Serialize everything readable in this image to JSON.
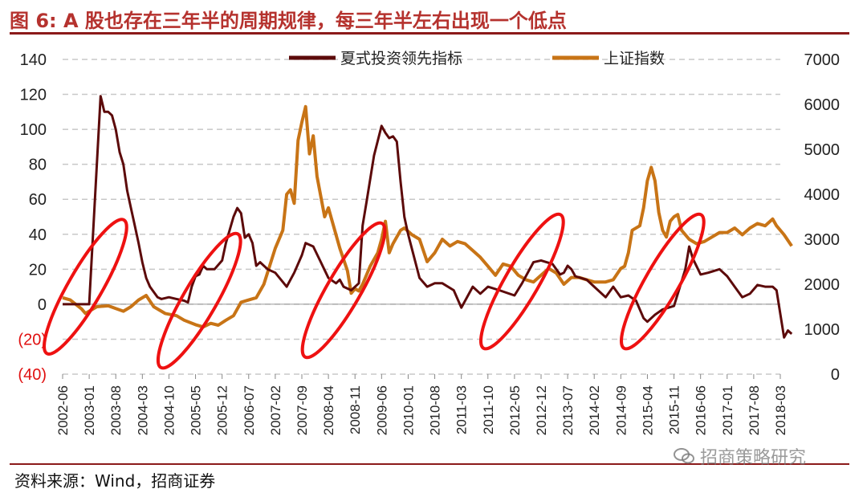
{
  "figure": {
    "title": "图 6:  A 股也存在三年半的周期规律，每三年半左右出现一个低点",
    "source": "资料来源：Wind，招商证券",
    "watermark": "招商策略研究",
    "watermark_icon": "wechat-icon"
  },
  "chart_data": {
    "type": "line",
    "colors": {
      "leading_indicator": "#5c0a0a",
      "sse_index": "#c87416",
      "highlight_ellipse": "#ee1111",
      "negative_tick": "#e01010"
    },
    "legend_position": "top",
    "grid": "horizontal-dashed",
    "y_left": {
      "range": [
        -40,
        140
      ],
      "ticks": [
        140,
        120,
        100,
        80,
        60,
        40,
        20,
        0,
        -20,
        -40
      ],
      "tick_labels": [
        "140",
        "120",
        "100",
        "80",
        "60",
        "40",
        "20",
        "0",
        "(20)",
        "(40)"
      ]
    },
    "y_right": {
      "range": [
        0,
        7000
      ],
      "ticks": [
        7000,
        6000,
        5000,
        4000,
        3000,
        2000,
        1000,
        0
      ],
      "tick_labels": [
        "7000",
        "6000",
        "5000",
        "4000",
        "3000",
        "2000",
        "1000",
        "0"
      ]
    },
    "x_ticks": [
      "2002-06",
      "2003-01",
      "2003-08",
      "2004-03",
      "2004-10",
      "2005-05",
      "2005-12",
      "2006-07",
      "2007-02",
      "2007-09",
      "2008-04",
      "2008-11",
      "2009-06",
      "2010-01",
      "2010-08",
      "2011-03",
      "2011-10",
      "2012-05",
      "2012-12",
      "2013-07",
      "2014-02",
      "2014-09",
      "2015-04",
      "2015-11",
      "2016-06",
      "2017-01",
      "2017-08",
      "2018-03"
    ],
    "series": [
      {
        "name": "夏式投资领先指标",
        "axis": "left",
        "points": [
          [
            "2002-06",
            0
          ],
          [
            "2002-10",
            0
          ],
          [
            "2002-12",
            0
          ],
          [
            "2003-01",
            0
          ],
          [
            "2003-04",
            119
          ],
          [
            "2003-05",
            110
          ],
          [
            "2003-06",
            110
          ],
          [
            "2003-07",
            108
          ],
          [
            "2003-08",
            100
          ],
          [
            "2003-09",
            87
          ],
          [
            "2003-10",
            80
          ],
          [
            "2003-11",
            65
          ],
          [
            "2003-12",
            55
          ],
          [
            "2004-01",
            45
          ],
          [
            "2004-02",
            35
          ],
          [
            "2004-03",
            24
          ],
          [
            "2004-04",
            15
          ],
          [
            "2004-05",
            10
          ],
          [
            "2004-06",
            7
          ],
          [
            "2004-07",
            4
          ],
          [
            "2004-08",
            3
          ],
          [
            "2004-10",
            4
          ],
          [
            "2004-12",
            3
          ],
          [
            "2005-02",
            2
          ],
          [
            "2005-03",
            1
          ],
          [
            "2005-04",
            10
          ],
          [
            "2005-05",
            16
          ],
          [
            "2005-06",
            17
          ],
          [
            "2005-07",
            22
          ],
          [
            "2005-08",
            20
          ],
          [
            "2005-10",
            20
          ],
          [
            "2005-12",
            25
          ],
          [
            "2006-01",
            35
          ],
          [
            "2006-03",
            50
          ],
          [
            "2006-04",
            55
          ],
          [
            "2006-05",
            52
          ],
          [
            "2006-06",
            38
          ],
          [
            "2006-07",
            40
          ],
          [
            "2006-08",
            35
          ],
          [
            "2006-09",
            22
          ],
          [
            "2006-10",
            24
          ],
          [
            "2006-12",
            20
          ],
          [
            "2007-02",
            18
          ],
          [
            "2007-05",
            10
          ],
          [
            "2007-07",
            18
          ],
          [
            "2007-09",
            28
          ],
          [
            "2007-10",
            35
          ],
          [
            "2007-12",
            33
          ],
          [
            "2008-02",
            24
          ],
          [
            "2008-04",
            15
          ],
          [
            "2008-06",
            12
          ],
          [
            "2008-07",
            14
          ],
          [
            "2008-08",
            10
          ],
          [
            "2008-10",
            8
          ],
          [
            "2008-12",
            12
          ],
          [
            "2009-01",
            45
          ],
          [
            "2009-02",
            58
          ],
          [
            "2009-04",
            85
          ],
          [
            "2009-06",
            102
          ],
          [
            "2009-07",
            98
          ],
          [
            "2009-08",
            95
          ],
          [
            "2009-09",
            96
          ],
          [
            "2009-10",
            93
          ],
          [
            "2009-11",
            70
          ],
          [
            "2009-12",
            50
          ],
          [
            "2010-01",
            40
          ],
          [
            "2010-04",
            15
          ],
          [
            "2010-06",
            10
          ],
          [
            "2010-08",
            12
          ],
          [
            "2010-10",
            12
          ],
          [
            "2011-01",
            8
          ],
          [
            "2011-03",
            -2
          ],
          [
            "2011-06",
            10
          ],
          [
            "2011-08",
            6
          ],
          [
            "2011-10",
            10
          ],
          [
            "2012-01",
            8
          ],
          [
            "2012-05",
            5
          ],
          [
            "2012-07",
            12
          ],
          [
            "2012-10",
            24
          ],
          [
            "2012-12",
            25
          ],
          [
            "2013-03",
            23
          ],
          [
            "2013-05",
            17
          ],
          [
            "2013-06",
            18
          ],
          [
            "2013-07",
            22
          ],
          [
            "2013-08",
            20
          ],
          [
            "2013-09",
            16
          ],
          [
            "2013-12",
            14
          ],
          [
            "2014-02",
            10
          ],
          [
            "2014-05",
            4
          ],
          [
            "2014-07",
            10
          ],
          [
            "2014-09",
            4
          ],
          [
            "2014-11",
            5
          ],
          [
            "2015-01",
            2
          ],
          [
            "2015-03",
            -8
          ],
          [
            "2015-04",
            -10
          ],
          [
            "2015-06",
            -6
          ],
          [
            "2015-08",
            -3
          ],
          [
            "2015-11",
            -1
          ],
          [
            "2016-02",
            20
          ],
          [
            "2016-03",
            33
          ],
          [
            "2016-04",
            26
          ],
          [
            "2016-06",
            17
          ],
          [
            "2016-08",
            18
          ],
          [
            "2016-11",
            20
          ],
          [
            "2017-01",
            16
          ],
          [
            "2017-03",
            10
          ],
          [
            "2017-05",
            4
          ],
          [
            "2017-07",
            6
          ],
          [
            "2017-09",
            11
          ],
          [
            "2017-11",
            10
          ],
          [
            "2018-01",
            10
          ],
          [
            "2018-02",
            8
          ],
          [
            "2018-04",
            -19
          ],
          [
            "2018-05",
            -15
          ],
          [
            "2018-06",
            -17
          ]
        ]
      },
      {
        "name": "上证指数",
        "axis": "right",
        "points": [
          [
            "2002-06",
            1700
          ],
          [
            "2002-08",
            1650
          ],
          [
            "2002-11",
            1450
          ],
          [
            "2002-12",
            1350
          ],
          [
            "2003-03",
            1500
          ],
          [
            "2003-06",
            1520
          ],
          [
            "2003-08",
            1460
          ],
          [
            "2003-10",
            1400
          ],
          [
            "2003-12",
            1500
          ],
          [
            "2004-02",
            1650
          ],
          [
            "2004-04",
            1750
          ],
          [
            "2004-06",
            1500
          ],
          [
            "2004-09",
            1350
          ],
          [
            "2004-12",
            1300
          ],
          [
            "2005-02",
            1200
          ],
          [
            "2005-05",
            1100
          ],
          [
            "2005-07",
            1050
          ],
          [
            "2005-09",
            1130
          ],
          [
            "2005-11",
            1090
          ],
          [
            "2006-01",
            1200
          ],
          [
            "2006-03",
            1300
          ],
          [
            "2006-05",
            1600
          ],
          [
            "2006-07",
            1650
          ],
          [
            "2006-09",
            1700
          ],
          [
            "2006-11",
            2000
          ],
          [
            "2007-02",
            2800
          ],
          [
            "2007-04",
            3200
          ],
          [
            "2007-05",
            4000
          ],
          [
            "2007-06",
            4100
          ],
          [
            "2007-07",
            3800
          ],
          [
            "2007-08",
            5200
          ],
          [
            "2007-09",
            5600
          ],
          [
            "2007-10",
            5950
          ],
          [
            "2007-11",
            4900
          ],
          [
            "2007-12",
            5300
          ],
          [
            "2008-01",
            4400
          ],
          [
            "2008-03",
            3500
          ],
          [
            "2008-04",
            3700
          ],
          [
            "2008-05",
            3400
          ],
          [
            "2008-07",
            2800
          ],
          [
            "2008-09",
            2300
          ],
          [
            "2008-10",
            1800
          ],
          [
            "2008-11",
            1900
          ],
          [
            "2008-12",
            1850
          ],
          [
            "2009-01",
            2000
          ],
          [
            "2009-03",
            2400
          ],
          [
            "2009-05",
            2700
          ],
          [
            "2009-06",
            3000
          ],
          [
            "2009-07",
            3400
          ],
          [
            "2009-08",
            2700
          ],
          [
            "2009-09",
            2900
          ],
          [
            "2009-11",
            3200
          ],
          [
            "2009-12",
            3250
          ],
          [
            "2010-02",
            3100
          ],
          [
            "2010-04",
            3000
          ],
          [
            "2010-06",
            2500
          ],
          [
            "2010-08",
            2700
          ],
          [
            "2010-10",
            3000
          ],
          [
            "2010-12",
            2850
          ],
          [
            "2011-02",
            2950
          ],
          [
            "2011-04",
            2900
          ],
          [
            "2011-06",
            2750
          ],
          [
            "2011-08",
            2600
          ],
          [
            "2011-10",
            2400
          ],
          [
            "2011-12",
            2200
          ],
          [
            "2012-02",
            2450
          ],
          [
            "2012-04",
            2400
          ],
          [
            "2012-06",
            2200
          ],
          [
            "2012-08",
            2100
          ],
          [
            "2012-10",
            2050
          ],
          [
            "2012-12",
            2200
          ],
          [
            "2013-02",
            2350
          ],
          [
            "2013-04",
            2250
          ],
          [
            "2013-06",
            2000
          ],
          [
            "2013-08",
            2150
          ],
          [
            "2013-10",
            2150
          ],
          [
            "2013-12",
            2100
          ],
          [
            "2014-02",
            2050
          ],
          [
            "2014-05",
            2050
          ],
          [
            "2014-07",
            2100
          ],
          [
            "2014-09",
            2350
          ],
          [
            "2014-10",
            2400
          ],
          [
            "2014-11",
            2700
          ],
          [
            "2014-12",
            3200
          ],
          [
            "2015-02",
            3300
          ],
          [
            "2015-03",
            3700
          ],
          [
            "2015-04",
            4300
          ],
          [
            "2015-05",
            4600
          ],
          [
            "2015-06",
            4300
          ],
          [
            "2015-07",
            3600
          ],
          [
            "2015-08",
            3200
          ],
          [
            "2015-09",
            3050
          ],
          [
            "2015-10",
            3400
          ],
          [
            "2015-11",
            3500
          ],
          [
            "2015-12",
            3550
          ],
          [
            "2016-01",
            3200
          ],
          [
            "2016-03",
            3000
          ],
          [
            "2016-05",
            2900
          ],
          [
            "2016-07",
            2950
          ],
          [
            "2016-09",
            3050
          ],
          [
            "2016-11",
            3150
          ],
          [
            "2017-01",
            3150
          ],
          [
            "2017-03",
            3250
          ],
          [
            "2017-05",
            3100
          ],
          [
            "2017-07",
            3250
          ],
          [
            "2017-09",
            3350
          ],
          [
            "2017-11",
            3300
          ],
          [
            "2018-01",
            3450
          ],
          [
            "2018-02",
            3300
          ],
          [
            "2018-04",
            3100
          ],
          [
            "2018-06",
            2850
          ]
        ]
      }
    ],
    "highlights": [
      {
        "center": "2002-12",
        "value_left": 10
      },
      {
        "center": "2005-06",
        "value_left": 2
      },
      {
        "center": "2008-08",
        "value_left": 8
      },
      {
        "center": "2012-07",
        "value_left": 13
      },
      {
        "center": "2015-08",
        "value_left": 13
      }
    ]
  }
}
